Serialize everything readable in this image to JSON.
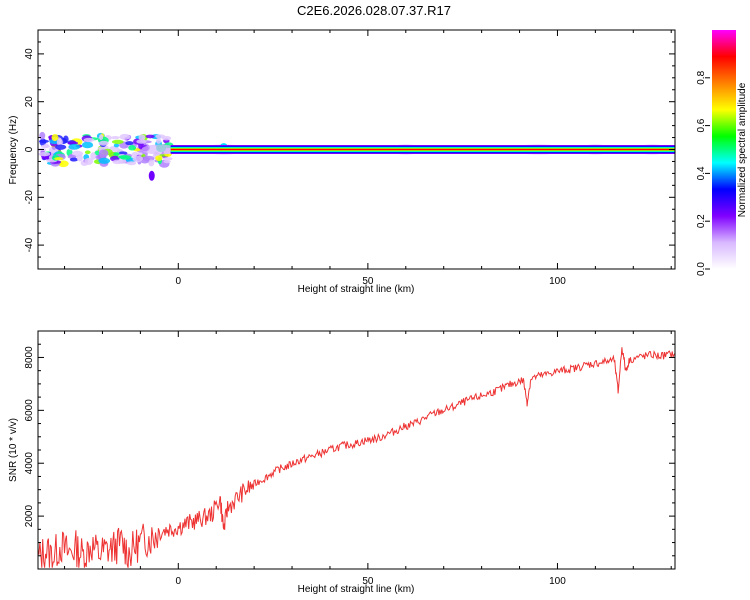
{
  "title": "C2E6.2026.028.07.37.R17",
  "chart_data": [
    {
      "type": "heatmap",
      "xlabel": "Height of straight line (km)",
      "ylabel": "Frequency (Hz)",
      "xlim": [
        -37,
        131
      ],
      "ylim": [
        -50,
        50
      ],
      "xticks": [
        0,
        50,
        100
      ],
      "yticks": [
        -40,
        -20,
        0,
        20,
        40
      ],
      "colorbar": {
        "label": "Normalized spectral amplitude",
        "range": [
          0.0,
          1.0
        ],
        "ticks": [
          0.0,
          0.2,
          0.4,
          0.6,
          0.8
        ],
        "colors": [
          "#ffffff",
          "#d8b8ff",
          "#8000ff",
          "#0000ff",
          "#00ffff",
          "#00ff00",
          "#ffff00",
          "#ff8000",
          "#ff0000",
          "#ff00ff"
        ]
      },
      "ridge": {
        "frequency": 0,
        "x_range": [
          -2,
          131
        ],
        "amplitude": 1.0
      }
    },
    {
      "type": "line",
      "xlabel": "Height of straight line (km)",
      "ylabel": "SNR (10 * v/v)",
      "xlim": [
        -37,
        131
      ],
      "ylim": [
        0,
        9000
      ],
      "xticks": [
        0,
        50,
        100
      ],
      "yticks": [
        2000,
        4000,
        6000,
        8000
      ],
      "color": "#ee3333",
      "series": [
        {
          "x": [
            -37,
            -35,
            -33,
            -31,
            -29,
            -27,
            -25,
            -23,
            -21,
            -19,
            -17,
            -15,
            -13,
            -11,
            -9,
            -7,
            -5,
            -3,
            -1,
            1,
            3,
            5,
            7,
            9,
            11,
            12,
            13,
            15,
            17,
            19,
            21,
            23,
            25,
            27,
            29,
            31,
            33,
            35,
            37,
            39,
            41,
            43,
            45,
            47,
            49,
            51,
            53,
            55,
            57,
            59,
            61,
            63,
            65,
            67,
            69,
            71,
            73,
            75,
            77,
            79,
            81,
            83,
            85,
            87,
            89,
            91,
            92,
            93,
            95,
            97,
            99,
            101,
            103,
            105,
            107,
            109,
            111,
            113,
            115,
            116,
            117,
            118,
            119,
            121,
            123,
            125,
            127,
            129,
            131
          ],
          "y": [
            400,
            700,
            500,
            900,
            600,
            800,
            500,
            900,
            600,
            700,
            800,
            1000,
            600,
            900,
            1100,
            1200,
            1400,
            1500,
            1550,
            1650,
            1750,
            1850,
            1950,
            2100,
            2700,
            1500,
            2300,
            2600,
            2900,
            3100,
            3300,
            3450,
            3650,
            3800,
            3900,
            4050,
            4150,
            4250,
            4350,
            4450,
            4550,
            4650,
            4700,
            4750,
            4850,
            4900,
            4950,
            5100,
            5200,
            5350,
            5450,
            5550,
            5700,
            5850,
            5950,
            6050,
            6150,
            6300,
            6400,
            6500,
            6600,
            6700,
            6800,
            6950,
            7050,
            7150,
            6300,
            7200,
            7300,
            7350,
            7450,
            7500,
            7550,
            7600,
            7700,
            7750,
            7800,
            7850,
            7900,
            6700,
            8400,
            7500,
            7900,
            8000,
            8050,
            8100,
            8050,
            8100,
            8150
          ]
        }
      ]
    }
  ]
}
